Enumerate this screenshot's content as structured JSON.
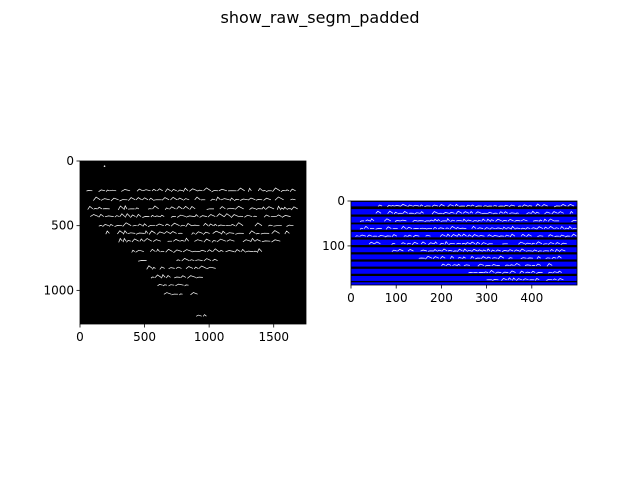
{
  "figure": {
    "title": "show_raw_segm_padded"
  },
  "colors": {
    "background": "#ffffff",
    "image_bg": "#000000",
    "ink": "#ffffff",
    "band": "#0000ff",
    "gap": "#000000"
  },
  "chart_data": [
    {
      "type": "image",
      "name": "raw",
      "xlim": [
        0,
        1750
      ],
      "ylim": [
        1260,
        0
      ],
      "xticks": [
        0,
        500,
        1000,
        1500
      ],
      "yticks": [
        0,
        500,
        1000
      ],
      "xlabel": "",
      "ylabel": "",
      "title": "",
      "grid": false
    },
    {
      "type": "image",
      "name": "segmentation",
      "xlim": [
        0,
        500
      ],
      "ylim": [
        187,
        0
      ],
      "xticks": [
        0,
        100,
        200,
        300,
        400
      ],
      "yticks": [
        0,
        100
      ],
      "xlabel": "",
      "ylabel": "",
      "title": "",
      "grid": false,
      "bands": [
        {
          "y0": 2,
          "y1": 12
        },
        {
          "y0": 18,
          "y1": 30
        },
        {
          "y0": 35,
          "y1": 48
        },
        {
          "y0": 52,
          "y1": 64
        },
        {
          "y0": 69,
          "y1": 81
        },
        {
          "y0": 86,
          "y1": 98
        },
        {
          "y0": 103,
          "y1": 114
        },
        {
          "y0": 119,
          "y1": 130
        },
        {
          "y0": 135,
          "y1": 146
        },
        {
          "y0": 151,
          "y1": 162
        },
        {
          "y0": 167,
          "y1": 178
        },
        {
          "y0": 181,
          "y1": 187
        }
      ]
    }
  ]
}
